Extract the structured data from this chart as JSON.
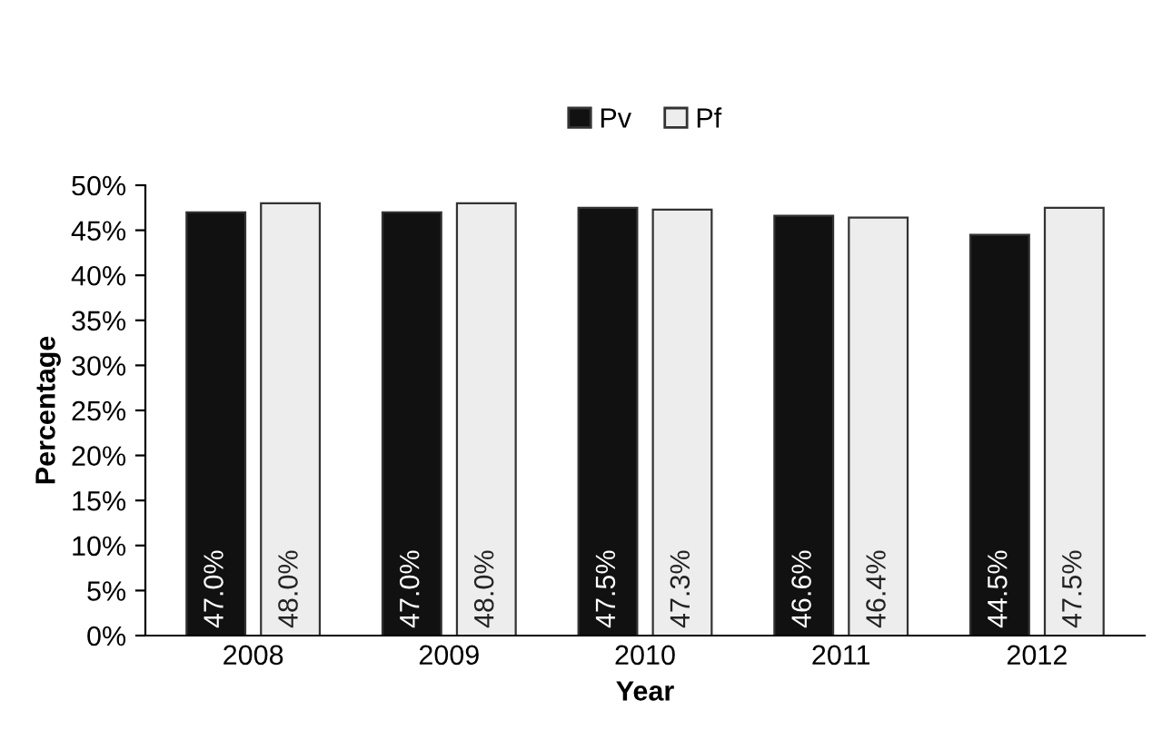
{
  "chart_data": {
    "type": "bar",
    "xlabel": "Year",
    "ylabel": "Percentage",
    "categories": [
      "2008",
      "2009",
      "2010",
      "2011",
      "2012"
    ],
    "series": [
      {
        "name": "Pv",
        "color": "#111111",
        "values": [
          47.0,
          47.0,
          47.5,
          46.6,
          44.5
        ],
        "value_labels": [
          "47.0%",
          "47.0%",
          "47.5%",
          "46.6%",
          "44.5%"
        ]
      },
      {
        "name": "Pf",
        "color": "#ededed",
        "values": [
          48.0,
          48.0,
          47.3,
          46.4,
          47.5
        ],
        "value_labels": [
          "48.0%",
          "48.0%",
          "47.3%",
          "46.4%",
          "47.5%"
        ]
      }
    ],
    "ylim": [
      0,
      50
    ],
    "yticks": [
      {
        "value": 0,
        "label": "0%"
      },
      {
        "value": 5,
        "label": "5%"
      },
      {
        "value": 10,
        "label": "10%"
      },
      {
        "value": 15,
        "label": "15%"
      },
      {
        "value": 20,
        "label": "20%"
      },
      {
        "value": 25,
        "label": "25%"
      },
      {
        "value": 30,
        "label": "30%"
      },
      {
        "value": 35,
        "label": "35%"
      },
      {
        "value": 40,
        "label": "40%"
      },
      {
        "value": 45,
        "label": "45%"
      },
      {
        "value": 50,
        "label": "50%"
      }
    ],
    "grid": false,
    "legend": "top"
  }
}
